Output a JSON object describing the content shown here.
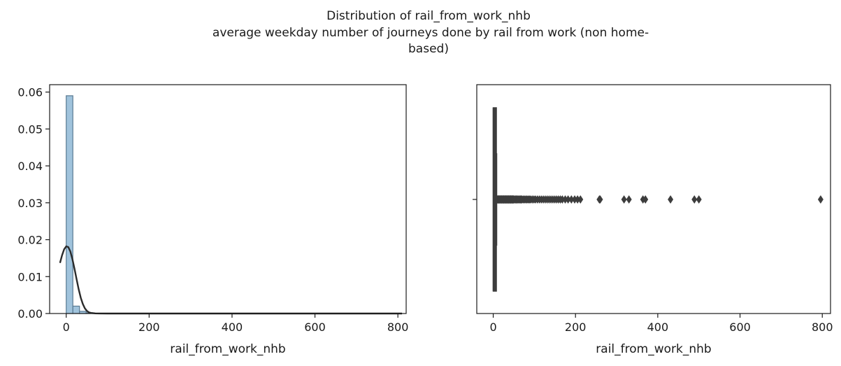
{
  "figure": {
    "title_lines": [
      "Distribution of rail_from_work_nhb",
      "average weekday number of journeys done by rail from work (non home-",
      "based)"
    ]
  },
  "chart_data": [
    {
      "type": "histogram",
      "xlabel": "rail_from_work_nhb",
      "ylabel": "",
      "xlim": [
        -40,
        820
      ],
      "ylim": [
        0,
        0.062
      ],
      "xticks": [
        0,
        200,
        400,
        600,
        800
      ],
      "xtick_labels": [
        "0",
        "200",
        "400",
        "600",
        "800"
      ],
      "yticks": [
        0.0,
        0.01,
        0.02,
        0.03,
        0.04,
        0.05,
        0.06
      ],
      "ytick_labels": [
        "0.00",
        "0.01",
        "0.02",
        "0.03",
        "0.04",
        "0.05",
        "0.06"
      ],
      "bar_color": "#8fb9d6",
      "bar_edge_color": "#5a7a92",
      "kde_color": "#2b2b2b",
      "bins": [
        {
          "x0": 0,
          "x1": 16,
          "density": 0.059
        },
        {
          "x0": 16,
          "x1": 32,
          "density": 0.002
        },
        {
          "x0": 32,
          "x1": 48,
          "density": 0.0006
        },
        {
          "x0": 48,
          "x1": 64,
          "density": 0.0002
        }
      ],
      "kde": {
        "x": [
          -15,
          -10,
          -5,
          0,
          5,
          10,
          15,
          20,
          25,
          30,
          35,
          40,
          45,
          50,
          55,
          60,
          70,
          80,
          100,
          150,
          300,
          500,
          810
        ],
        "y": [
          0.0137,
          0.0158,
          0.0174,
          0.0182,
          0.018,
          0.0168,
          0.0147,
          0.0121,
          0.0093,
          0.0066,
          0.0043,
          0.0026,
          0.0014,
          0.0007,
          0.0003,
          0.00015,
          4e-05,
          1e-05,
          0.0,
          0.0,
          0.0,
          0.0,
          0.0
        ]
      }
    },
    {
      "type": "boxplot",
      "xlabel": "rail_from_work_nhb",
      "xlim": [
        -40,
        820
      ],
      "xticks": [
        0,
        200,
        400,
        600,
        800
      ],
      "xtick_labels": [
        "0",
        "200",
        "400",
        "600",
        "800"
      ],
      "color": "#3d3d3d",
      "box": {
        "q1": 0,
        "median": 0,
        "q3": 1,
        "whisker_low": 0,
        "whisker_high": 8
      },
      "outliers": [
        9,
        10,
        11,
        12,
        13,
        14,
        15,
        16,
        17,
        18,
        19,
        20,
        21,
        22,
        23,
        24,
        25,
        26,
        27,
        28,
        29,
        30,
        31,
        32,
        33,
        34,
        35,
        36,
        37,
        38,
        39,
        40,
        41,
        42,
        43,
        44,
        45,
        46,
        47,
        48,
        49,
        50,
        52,
        54,
        56,
        58,
        60,
        62,
        64,
        66,
        68,
        70,
        73,
        76,
        79,
        82,
        85,
        88,
        91,
        95,
        99,
        103,
        108,
        113,
        118,
        123,
        128,
        133,
        138,
        143,
        148,
        153,
        158,
        163,
        168,
        175,
        182,
        190,
        198,
        205,
        212,
        258,
        260,
        318,
        330,
        364,
        370,
        431,
        489,
        500,
        796
      ]
    }
  ]
}
